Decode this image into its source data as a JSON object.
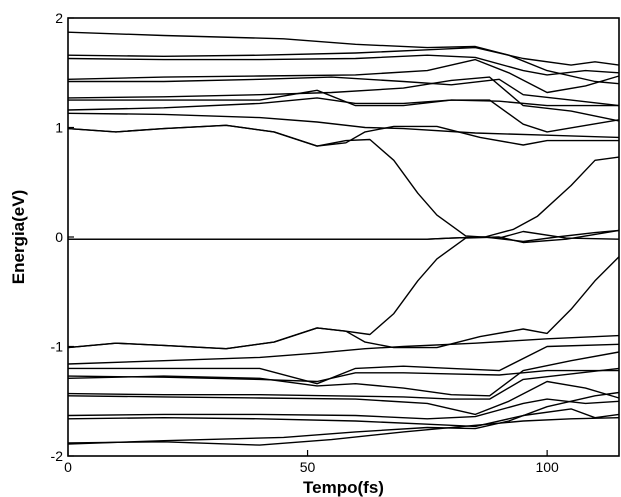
{
  "chart_data": {
    "type": "line",
    "title": "",
    "xlabel": "Tempo(fs)",
    "ylabel": "Energia(eV)",
    "xlim": [
      0,
      115
    ],
    "ylim": [
      -2,
      2
    ],
    "xticks": [
      0,
      50,
      100
    ],
    "yticks": [
      -2,
      -1,
      0,
      1,
      2
    ],
    "grid": false,
    "legend": "none",
    "series": [
      {
        "points": [
          [
            0,
            1.87
          ],
          [
            20,
            1.84
          ],
          [
            45,
            1.81
          ],
          [
            60,
            1.76
          ],
          [
            75,
            1.73
          ],
          [
            85,
            1.74
          ],
          [
            92,
            1.66
          ],
          [
            100,
            1.52
          ],
          [
            110,
            1.42
          ],
          [
            115,
            1.4
          ]
        ]
      },
      {
        "points": [
          [
            0,
            1.66
          ],
          [
            20,
            1.65
          ],
          [
            40,
            1.66
          ],
          [
            60,
            1.68
          ],
          [
            75,
            1.71
          ],
          [
            85,
            1.73
          ],
          [
            95,
            1.63
          ],
          [
            105,
            1.57
          ],
          [
            110,
            1.6
          ],
          [
            115,
            1.57
          ]
        ]
      },
      {
        "points": [
          [
            0,
            1.63
          ],
          [
            20,
            1.62
          ],
          [
            40,
            1.62
          ],
          [
            60,
            1.63
          ],
          [
            75,
            1.66
          ],
          [
            85,
            1.64
          ],
          [
            95,
            1.52
          ],
          [
            100,
            1.48
          ],
          [
            108,
            1.52
          ],
          [
            115,
            1.5
          ]
        ]
      },
      {
        "points": [
          [
            0,
            1.44
          ],
          [
            20,
            1.46
          ],
          [
            40,
            1.47
          ],
          [
            60,
            1.48
          ],
          [
            75,
            1.52
          ],
          [
            85,
            1.62
          ],
          [
            92,
            1.5
          ],
          [
            100,
            1.32
          ],
          [
            108,
            1.38
          ],
          [
            115,
            1.47
          ]
        ]
      },
      {
        "points": [
          [
            0,
            1.42
          ],
          [
            20,
            1.42
          ],
          [
            40,
            1.44
          ],
          [
            55,
            1.46
          ],
          [
            70,
            1.42
          ],
          [
            80,
            1.39
          ],
          [
            90,
            1.44
          ],
          [
            95,
            1.3
          ],
          [
            105,
            1.25
          ],
          [
            115,
            1.2
          ]
        ]
      },
      {
        "points": [
          [
            0,
            1.27
          ],
          [
            20,
            1.28
          ],
          [
            40,
            1.3
          ],
          [
            55,
            1.32
          ],
          [
            70,
            1.36
          ],
          [
            80,
            1.43
          ],
          [
            88,
            1.46
          ],
          [
            95,
            1.2
          ],
          [
            105,
            1.15
          ],
          [
            115,
            1.06
          ]
        ]
      },
      {
        "points": [
          [
            0,
            1.25
          ],
          [
            20,
            1.25
          ],
          [
            40,
            1.25
          ],
          [
            52,
            1.34
          ],
          [
            60,
            1.2
          ],
          [
            70,
            1.2
          ],
          [
            80,
            1.25
          ],
          [
            88,
            1.25
          ],
          [
            95,
            1.03
          ],
          [
            100,
            0.96
          ],
          [
            115,
            1.07
          ]
        ]
      },
      {
        "points": [
          [
            0,
            1.16
          ],
          [
            20,
            1.18
          ],
          [
            40,
            1.22
          ],
          [
            52,
            1.27
          ],
          [
            60,
            1.22
          ],
          [
            70,
            1.22
          ],
          [
            80,
            1.25
          ],
          [
            90,
            1.24
          ],
          [
            100,
            1.2
          ],
          [
            115,
            1.2
          ]
        ]
      },
      {
        "points": [
          [
            0,
            1.13
          ],
          [
            20,
            1.12
          ],
          [
            40,
            1.09
          ],
          [
            52,
            1.05
          ],
          [
            62,
            1.0
          ],
          [
            70,
            0.99
          ],
          [
            85,
            0.95
          ],
          [
            100,
            0.93
          ],
          [
            115,
            0.91
          ]
        ]
      },
      {
        "points": [
          [
            0,
            0.99
          ],
          [
            10,
            0.96
          ],
          [
            20,
            0.99
          ],
          [
            33,
            1.02
          ],
          [
            43,
            0.96
          ],
          [
            52,
            0.83
          ],
          [
            58,
            0.86
          ],
          [
            62,
            0.96
          ],
          [
            68,
            1.01
          ],
          [
            77,
            1.01
          ],
          [
            86,
            0.91
          ],
          [
            95,
            0.84
          ],
          [
            100,
            0.88
          ],
          [
            115,
            0.88
          ]
        ]
      },
      {
        "points": [
          [
            0,
            0.99
          ],
          [
            10,
            0.96
          ],
          [
            20,
            0.99
          ],
          [
            33,
            1.02
          ],
          [
            43,
            0.96
          ],
          [
            52,
            0.83
          ],
          [
            58,
            0.88
          ],
          [
            63,
            0.89
          ],
          [
            68,
            0.7
          ],
          [
            73,
            0.4
          ],
          [
            77,
            0.2
          ],
          [
            83,
            0.01
          ],
          [
            90,
            -0.01
          ],
          [
            95,
            0.05
          ],
          [
            104,
            -0.01
          ],
          [
            115,
            -0.02
          ]
        ]
      },
      {
        "points": [
          [
            0,
            -0.02
          ],
          [
            75,
            -0.02
          ],
          [
            80,
            -0.01
          ],
          [
            87,
            0.0
          ],
          [
            93,
            0.07
          ],
          [
            98,
            0.19
          ],
          [
            105,
            0.47
          ],
          [
            110,
            0.7
          ],
          [
            115,
            0.73
          ]
        ]
      },
      {
        "points": [
          [
            0,
            -0.02
          ],
          [
            75,
            -0.02
          ],
          [
            80,
            -0.01
          ],
          [
            87,
            0.0
          ],
          [
            95,
            -0.04
          ],
          [
            102,
            0.0
          ],
          [
            110,
            0.04
          ],
          [
            115,
            0.06
          ]
        ]
      },
      {
        "points": [
          [
            0,
            -1.01
          ],
          [
            10,
            -0.97
          ],
          [
            20,
            -0.99
          ],
          [
            33,
            -1.02
          ],
          [
            43,
            -0.96
          ],
          [
            52,
            -0.83
          ],
          [
            58,
            -0.86
          ],
          [
            63,
            -0.89
          ],
          [
            68,
            -0.7
          ],
          [
            73,
            -0.4
          ],
          [
            77,
            -0.2
          ],
          [
            83,
            -0.01
          ],
          [
            90,
            0.0
          ],
          [
            95,
            -0.05
          ],
          [
            104,
            -0.02
          ],
          [
            115,
            0.06
          ]
        ]
      },
      {
        "points": [
          [
            0,
            -1.01
          ],
          [
            10,
            -0.97
          ],
          [
            20,
            -0.99
          ],
          [
            33,
            -1.02
          ],
          [
            43,
            -0.96
          ],
          [
            52,
            -0.83
          ],
          [
            58,
            -0.86
          ],
          [
            62,
            -0.96
          ],
          [
            68,
            -1.01
          ],
          [
            77,
            -1.01
          ],
          [
            86,
            -0.91
          ],
          [
            95,
            -0.84
          ],
          [
            100,
            -0.88
          ],
          [
            105,
            -0.66
          ],
          [
            110,
            -0.4
          ],
          [
            115,
            -0.18
          ]
        ]
      },
      {
        "points": [
          [
            0,
            -1.16
          ],
          [
            20,
            -1.13
          ],
          [
            40,
            -1.1
          ],
          [
            52,
            -1.06
          ],
          [
            62,
            -1.02
          ],
          [
            70,
            -1.0
          ],
          [
            85,
            -0.97
          ],
          [
            100,
            -0.93
          ],
          [
            115,
            -0.9
          ]
        ]
      },
      {
        "points": [
          [
            0,
            -1.2
          ],
          [
            20,
            -1.2
          ],
          [
            40,
            -1.2
          ],
          [
            52,
            -1.34
          ],
          [
            60,
            -1.2
          ],
          [
            70,
            -1.18
          ],
          [
            80,
            -1.2
          ],
          [
            90,
            -1.22
          ],
          [
            100,
            -1.0
          ],
          [
            115,
            -0.98
          ]
        ]
      },
      {
        "points": [
          [
            0,
            -1.27
          ],
          [
            20,
            -1.28
          ],
          [
            40,
            -1.3
          ],
          [
            52,
            -1.32
          ],
          [
            60,
            -1.24
          ],
          [
            70,
            -1.24
          ],
          [
            80,
            -1.25
          ],
          [
            90,
            -1.26
          ],
          [
            100,
            -1.22
          ],
          [
            115,
            -1.22
          ]
        ]
      },
      {
        "points": [
          [
            0,
            -1.29
          ],
          [
            20,
            -1.27
          ],
          [
            40,
            -1.29
          ],
          [
            52,
            -1.36
          ],
          [
            60,
            -1.34
          ],
          [
            70,
            -1.38
          ],
          [
            80,
            -1.44
          ],
          [
            88,
            -1.45
          ],
          [
            95,
            -1.22
          ],
          [
            105,
            -1.13
          ],
          [
            115,
            -1.05
          ]
        ]
      },
      {
        "points": [
          [
            0,
            -1.43
          ],
          [
            20,
            -1.44
          ],
          [
            40,
            -1.44
          ],
          [
            55,
            -1.45
          ],
          [
            70,
            -1.46
          ],
          [
            80,
            -1.48
          ],
          [
            88,
            -1.48
          ],
          [
            95,
            -1.3
          ],
          [
            105,
            -1.25
          ],
          [
            115,
            -1.2
          ]
        ]
      },
      {
        "points": [
          [
            0,
            -1.45
          ],
          [
            20,
            -1.46
          ],
          [
            40,
            -1.47
          ],
          [
            60,
            -1.48
          ],
          [
            75,
            -1.52
          ],
          [
            85,
            -1.62
          ],
          [
            92,
            -1.5
          ],
          [
            100,
            -1.32
          ],
          [
            108,
            -1.38
          ],
          [
            115,
            -1.47
          ]
        ]
      },
      {
        "points": [
          [
            0,
            -1.63
          ],
          [
            20,
            -1.62
          ],
          [
            40,
            -1.62
          ],
          [
            60,
            -1.63
          ],
          [
            75,
            -1.66
          ],
          [
            85,
            -1.64
          ],
          [
            95,
            -1.52
          ],
          [
            100,
            -1.48
          ],
          [
            108,
            -1.52
          ],
          [
            115,
            -1.5
          ]
        ]
      },
      {
        "points": [
          [
            0,
            -1.66
          ],
          [
            20,
            -1.65
          ],
          [
            40,
            -1.66
          ],
          [
            60,
            -1.68
          ],
          [
            75,
            -1.71
          ],
          [
            85,
            -1.73
          ],
          [
            95,
            -1.63
          ],
          [
            105,
            -1.57
          ],
          [
            110,
            -1.65
          ],
          [
            115,
            -1.62
          ]
        ]
      },
      {
        "points": [
          [
            0,
            -1.89
          ],
          [
            20,
            -1.86
          ],
          [
            45,
            -1.83
          ],
          [
            60,
            -1.78
          ],
          [
            75,
            -1.74
          ],
          [
            85,
            -1.75
          ],
          [
            92,
            -1.68
          ],
          [
            100,
            -1.55
          ],
          [
            110,
            -1.45
          ],
          [
            115,
            -1.42
          ]
        ]
      },
      {
        "points": [
          [
            0,
            -1.88
          ],
          [
            20,
            -1.87
          ],
          [
            40,
            -1.9
          ],
          [
            55,
            -1.85
          ],
          [
            70,
            -1.78
          ],
          [
            85,
            -1.72
          ],
          [
            95,
            -1.68
          ],
          [
            105,
            -1.66
          ],
          [
            115,
            -1.65
          ]
        ]
      }
    ]
  }
}
